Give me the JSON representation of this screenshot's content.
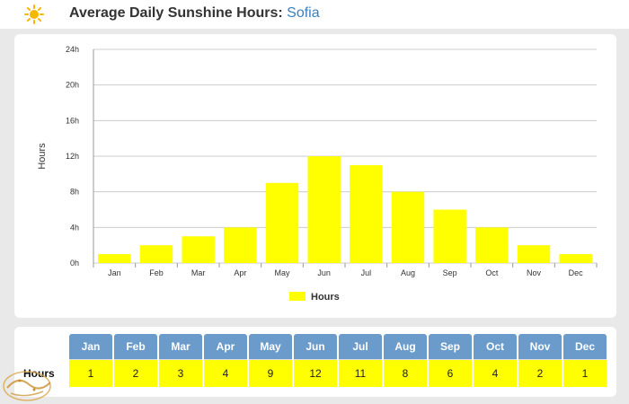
{
  "header": {
    "title": "Average Daily Sunshine Hours:",
    "city": "Sofia",
    "icon": "sun-icon",
    "icon_color": "#f5b800"
  },
  "chart_data": {
    "type": "bar",
    "categories": [
      "Jan",
      "Feb",
      "Mar",
      "Apr",
      "May",
      "Jun",
      "Jul",
      "Aug",
      "Sep",
      "Oct",
      "Nov",
      "Dec"
    ],
    "series": [
      {
        "name": "Hours",
        "values": [
          1,
          2,
          3,
          4,
          9,
          12,
          11,
          8,
          6,
          4,
          2,
          1
        ],
        "color": "#ffff00"
      }
    ],
    "ylabel": "Hours",
    "ylim": [
      0,
      24
    ],
    "yticks": [
      0,
      4,
      8,
      12,
      16,
      20,
      24
    ],
    "ytick_labels": [
      "0h",
      "4h",
      "8h",
      "12h",
      "16h",
      "20h",
      "24h"
    ],
    "grid": true,
    "legend": "bottom-center"
  },
  "table": {
    "row_label": "Hours",
    "header_color": "#6a9bcb",
    "cell_color": "#ffff00"
  }
}
